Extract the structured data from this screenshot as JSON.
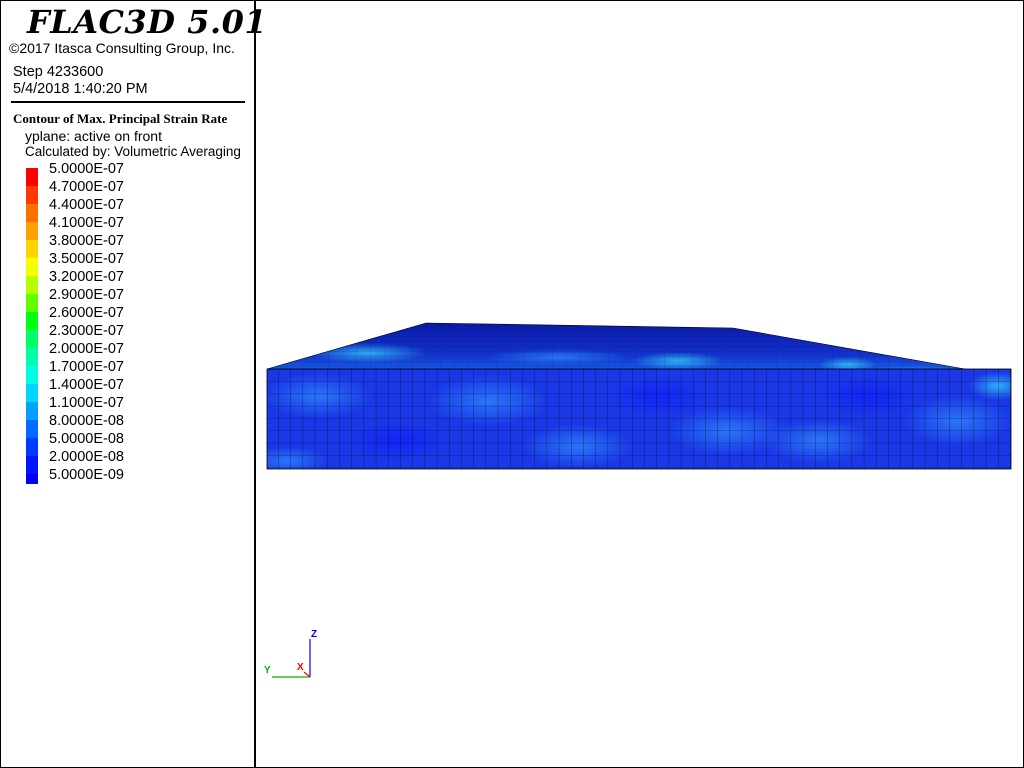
{
  "header": {
    "program": "FLAC3D 5.01",
    "copyright": "©2017 Itasca Consulting Group, Inc.",
    "step": "Step 4233600",
    "datetime": "5/4/2018 1:40:20 PM"
  },
  "contour": {
    "title": "Contour of Max. Principal Strain Rate",
    "plane": "yplane: active on front",
    "calc": "Calculated by: Volumetric Averaging",
    "levels": [
      {
        "label": "5.0000E-07",
        "color": "#ff0000"
      },
      {
        "label": "4.7000E-07",
        "color": "#ff3a00"
      },
      {
        "label": "4.4000E-07",
        "color": "#ff6e00"
      },
      {
        "label": "4.1000E-07",
        "color": "#ffa200"
      },
      {
        "label": "3.8000E-07",
        "color": "#ffd400"
      },
      {
        "label": "3.5000E-07",
        "color": "#f4ff00"
      },
      {
        "label": "3.2000E-07",
        "color": "#b4ff00"
      },
      {
        "label": "2.9000E-07",
        "color": "#62ff00"
      },
      {
        "label": "2.6000E-07",
        "color": "#00ff10"
      },
      {
        "label": "2.3000E-07",
        "color": "#00ff66"
      },
      {
        "label": "2.0000E-07",
        "color": "#00ffa8"
      },
      {
        "label": "1.7000E-07",
        "color": "#00ffe4"
      },
      {
        "label": "1.4000E-07",
        "color": "#00d4ff"
      },
      {
        "label": "1.1000E-07",
        "color": "#00a0ff"
      },
      {
        "label": "8.0000E-08",
        "color": "#006cff"
      },
      {
        "label": "5.0000E-08",
        "color": "#003cff"
      },
      {
        "label": "2.0000E-08",
        "color": "#0016ff"
      },
      {
        "label": "5.0000E-09",
        "color": "#0000ff"
      }
    ]
  },
  "axes": {
    "z": "Z",
    "y": "Y",
    "x": "X"
  }
}
